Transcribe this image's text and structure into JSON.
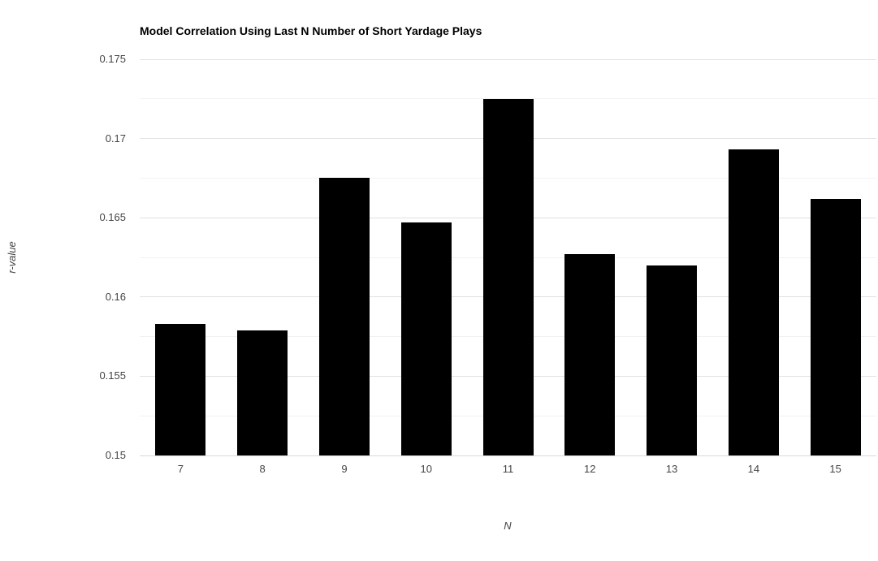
{
  "page": {
    "background": "#ffffff"
  },
  "chart_data": {
    "type": "bar",
    "title": "Model Correlation Using Last N Number of Short Yardage Plays",
    "xlabel": "N",
    "ylabel": "r-value",
    "categories": [
      "7",
      "8",
      "9",
      "10",
      "11",
      "12",
      "13",
      "14",
      "15"
    ],
    "values": [
      0.1583,
      0.1579,
      0.1675,
      0.1647,
      0.1725,
      0.1627,
      0.162,
      0.1693,
      0.1662
    ],
    "ylim": [
      0.15,
      0.175
    ],
    "yticks": [
      {
        "value": 0.15,
        "label": "0.15"
      },
      {
        "value": 0.155,
        "label": "0.155"
      },
      {
        "value": 0.16,
        "label": "0.16"
      },
      {
        "value": 0.165,
        "label": "0.165"
      },
      {
        "value": 0.17,
        "label": "0.17"
      },
      {
        "value": 0.175,
        "label": "0.175"
      }
    ],
    "yticks_minor": [
      0.1525,
      0.1575,
      0.1625,
      0.1675,
      0.1725
    ],
    "legend": "none",
    "grid": "on",
    "colors": {
      "bar": "#000000",
      "grid_major": "#e2e2e2",
      "grid_minor": "#f2f2f2",
      "axis_line": "#d9d9d9",
      "tick_label": "#444444",
      "axis_title": "#444444",
      "title": "#000000"
    }
  }
}
